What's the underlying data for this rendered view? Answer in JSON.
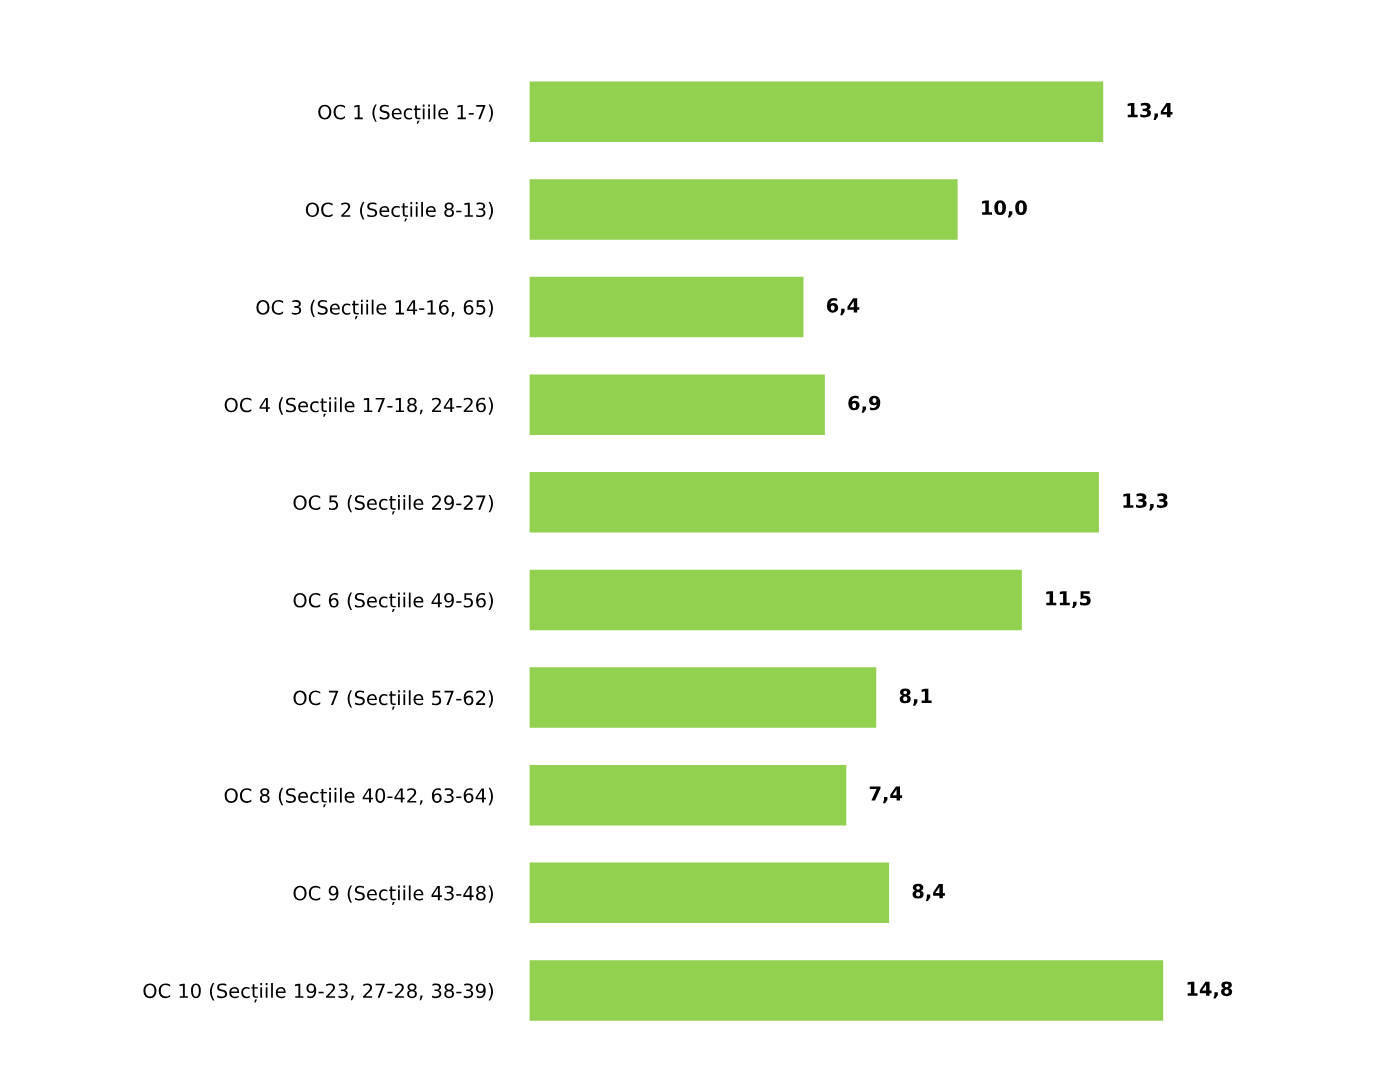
{
  "chart_data": {
    "type": "bar",
    "orientation": "horizontal",
    "categories": [
      "OC 1 (Secțiile 1-7)",
      "OC 2 (Secțiile 8-13)",
      "OC 3 (Secțiile 14-16, 65)",
      "OC 4 (Secțiile 17-18, 24-26)",
      "OC 5 (Secțiile 29-27)",
      "OC 6 (Secțiile 49-56)",
      "OC 7 (Secțiile 57-62)",
      "OC 8 (Secțiile 40-42, 63-64)",
      "OC 9 (Secțiile 43-48)",
      "OC 10 (Secțiile 19-23, 27-28, 38-39)"
    ],
    "values": [
      13.4,
      10.0,
      6.4,
      6.9,
      13.3,
      11.5,
      8.1,
      7.4,
      8.4,
      14.8
    ],
    "value_labels": [
      "13,4",
      "10,0",
      "6,4",
      "6,9",
      "13,3",
      "11,5",
      "8,1",
      "7,4",
      "8,4",
      "14,8"
    ],
    "color": "#92d050",
    "grid": false
  }
}
